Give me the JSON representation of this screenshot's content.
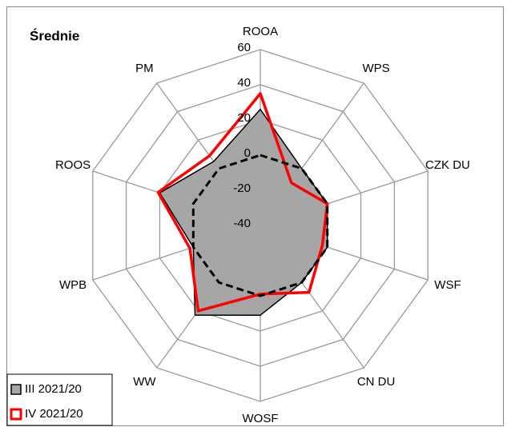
{
  "chart_data": {
    "type": "radar",
    "title": "Średnie",
    "categories": [
      "ROOA",
      "WPS",
      "CZK DU",
      "WSF",
      "CN DU",
      "WOSF",
      "WW",
      "WPB",
      "ROOS",
      "PM"
    ],
    "ylim": [
      -40,
      60
    ],
    "yticks": [
      -40,
      -20,
      0,
      20,
      40,
      60
    ],
    "grid": true,
    "legend": "bottom-left",
    "series": [
      {
        "name": "III 2021/20",
        "color": "#000000",
        "fill": "#a6a6a6",
        "values": [
          26,
          0,
          0,
          0,
          0,
          11,
          23,
          0,
          20,
          5
        ]
      },
      {
        "name": "IV 2021/20",
        "color": "#ff0000",
        "values": [
          35,
          -10,
          0,
          -3,
          7,
          -1,
          20,
          2,
          21,
          9
        ]
      },
      {
        "color": "#000000",
        "line_style": "dashed",
        "values": [
          0,
          0,
          0,
          0,
          0,
          0,
          0,
          0,
          0,
          0
        ]
      }
    ]
  }
}
